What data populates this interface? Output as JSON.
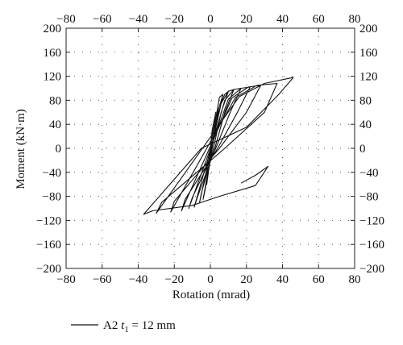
{
  "chart_data": {
    "type": "line",
    "title": "",
    "xlabel": "Rotation (mrad)",
    "ylabel": "Moment (kN·m)",
    "xlim": [
      -80,
      80
    ],
    "ylim": [
      -200,
      200
    ],
    "xticks": [
      -80,
      -60,
      -40,
      -20,
      0,
      20,
      40,
      60,
      80
    ],
    "yticks": [
      -200,
      -160,
      -120,
      -80,
      -40,
      0,
      40,
      80,
      120,
      160,
      200
    ],
    "xtick_labels": [
      "−80",
      "−60",
      "−40",
      "−20",
      "0",
      "20",
      "40",
      "60",
      "80"
    ],
    "ytick_labels": [
      "−200",
      "−160",
      "−120",
      "−80",
      "−40",
      "0",
      "40",
      "80",
      "120",
      "160",
      "200"
    ],
    "grid": "dotted",
    "legend_position": "bottom-left",
    "line_color": "#111111",
    "series": [
      {
        "name": "A2 t1 = 12 mm",
        "name_parts": {
          "prefix": "A2 ",
          "var": "t",
          "sub": "1",
          "suffix": " = 12 mm"
        },
        "x": [
          0,
          2,
          3,
          1,
          -1,
          -2,
          3,
          5,
          7,
          4,
          0,
          -3,
          -4,
          5,
          8,
          10,
          6,
          1,
          -5,
          -6,
          6,
          10,
          13,
          8,
          2,
          -7,
          -9,
          8,
          13,
          17,
          11,
          3,
          -10,
          -12,
          10,
          17,
          22,
          15,
          4,
          -14,
          -16,
          12,
          21,
          28,
          20,
          5,
          -20,
          -22,
          14,
          26,
          37,
          30,
          8,
          -27,
          -30,
          16,
          30,
          46,
          38,
          20,
          -5,
          -37,
          -32,
          -10,
          5,
          25,
          32,
          25,
          17
        ],
        "y": [
          0,
          40,
          60,
          30,
          -30,
          -60,
          50,
          85,
          90,
          60,
          -20,
          -70,
          -85,
          70,
          90,
          95,
          60,
          -10,
          -75,
          -90,
          75,
          95,
          98,
          60,
          -5,
          -80,
          -98,
          80,
          98,
          100,
          60,
          0,
          -82,
          -100,
          82,
          100,
          102,
          60,
          0,
          -85,
          -104,
          84,
          102,
          105,
          60,
          0,
          -88,
          -106,
          85,
          105,
          108,
          60,
          0,
          -90,
          -108,
          86,
          108,
          118,
          90,
          35,
          0,
          -110,
          -104,
          -95,
          -80,
          -62,
          -30,
          -45,
          -58
        ]
      }
    ]
  }
}
